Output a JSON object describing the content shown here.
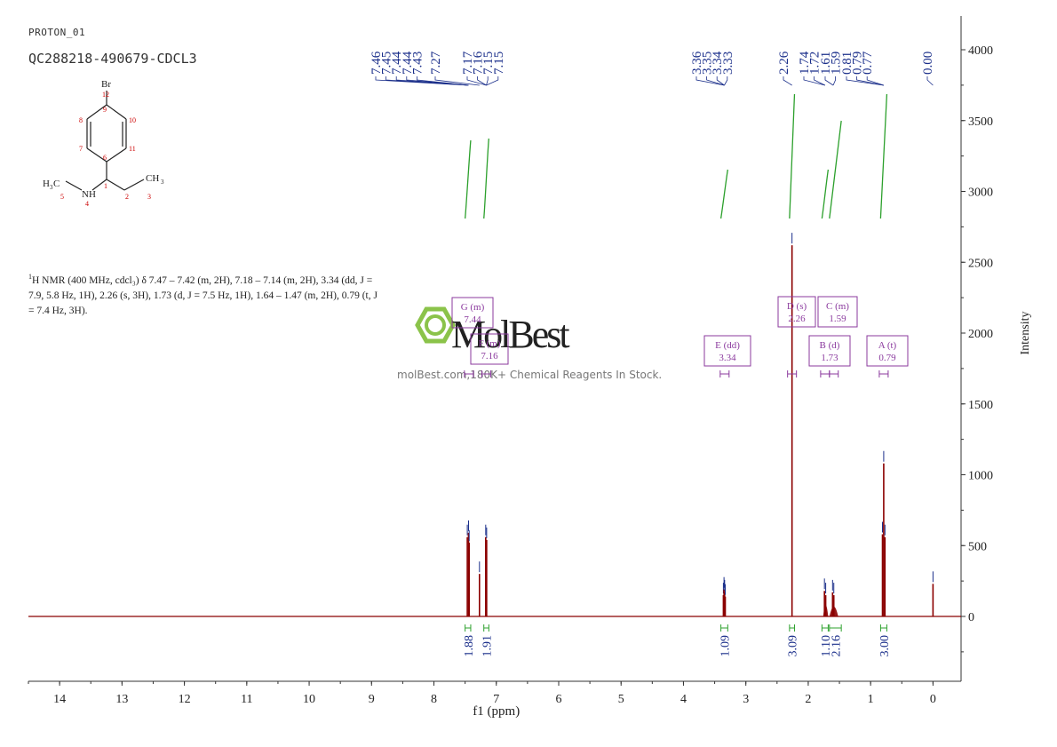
{
  "header": {
    "experiment_id": "PROTON_01",
    "sample_id": "QC288218-490679-CDCL3"
  },
  "molecule": {
    "atoms": {
      "Br": "Br",
      "a12": "12",
      "a9": "9",
      "a8": "8",
      "a10": "10",
      "a7": "7",
      "a11": "11",
      "a6": "6",
      "a1": "1",
      "a2": "2",
      "a3": "3",
      "a5": "5",
      "a4": "4",
      "NH": "NH",
      "H3C_left": "H",
      "H3C_left_sub": "3",
      "H3C_left_C": "C",
      "CH3_right": "CH",
      "CH3_right_sub": "3"
    }
  },
  "nmr_text": {
    "sup": "1",
    "line": "H NMR (400 MHz, cdcl₃) δ 7.47 – 7.42 (m, 2H), 7.18 – 7.14 (m, 2H), 3.34 (dd, J = 7.9, 5.8 Hz, 1H), 2.26 (s, 3H), 1.73 (d, J = 7.5 Hz, 1H), 1.64 – 1.47 (m, 2H), 0.79 (t, J = 7.4 Hz, 3H)."
  },
  "watermark": {
    "logo": "MolBest",
    "caption": "molBest.com,180K+ Chemical Reagents In Stock."
  },
  "colors": {
    "spectrum": "#8b0000",
    "integral": "#2ca02c",
    "peak_label": "#1a2e8a",
    "multiplet_box": "#8b3a9e",
    "axis": "#333333",
    "logo": "#8bc34a"
  },
  "chart_data": {
    "type": "line",
    "xlabel": "f1 (ppm)",
    "ylabel": "Intensity",
    "xlim": [
      14.5,
      -0.45
    ],
    "x_reversed": true,
    "ylim": [
      -420,
      4150
    ],
    "x_ticks": [
      14,
      13,
      12,
      11,
      10,
      9,
      8,
      7,
      6,
      5,
      4,
      3,
      2,
      1,
      0
    ],
    "y_ticks": [
      0,
      500,
      1000,
      1500,
      2000,
      2500,
      3000,
      3500,
      4000
    ],
    "peaks": [
      {
        "ppm": 7.465,
        "height": 560
      },
      {
        "ppm": 7.445,
        "height": 590
      },
      {
        "ppm": 7.435,
        "height": 520
      },
      {
        "ppm": 7.27,
        "height": 300
      },
      {
        "ppm": 7.17,
        "height": 560
      },
      {
        "ppm": 7.155,
        "height": 540
      },
      {
        "ppm": 3.36,
        "height": 150
      },
      {
        "ppm": 3.35,
        "height": 190
      },
      {
        "ppm": 3.34,
        "height": 170
      },
      {
        "ppm": 3.33,
        "height": 140
      },
      {
        "ppm": 2.26,
        "height": 2620
      },
      {
        "ppm": 1.74,
        "height": 180
      },
      {
        "ppm": 1.72,
        "height": 150
      },
      {
        "ppm": 1.61,
        "height": 170
      },
      {
        "ppm": 1.59,
        "height": 150
      },
      {
        "ppm": 0.81,
        "height": 580
      },
      {
        "ppm": 0.79,
        "height": 1080
      },
      {
        "ppm": 0.77,
        "height": 560
      },
      {
        "ppm": 0.0,
        "height": 230
      }
    ],
    "peak_label_groups": [
      {
        "labels": [
          "7.46",
          "7.45",
          "7.44",
          "7.44",
          "7.43"
        ],
        "target_ppm": 7.445
      },
      {
        "labels": [
          "7.27"
        ],
        "target_ppm": 7.27
      },
      {
        "labels": [
          "7.17",
          "7.16",
          "7.15",
          "7.15"
        ],
        "target_ppm": 7.16
      },
      {
        "labels": [
          "3.36",
          "3.35",
          "3.34",
          "3.33"
        ],
        "target_ppm": 3.345
      },
      {
        "labels": [
          "2.26"
        ],
        "target_ppm": 2.26
      },
      {
        "labels": [
          "1.74",
          "1.72"
        ],
        "target_ppm": 1.73
      },
      {
        "labels": [
          "1.61",
          "1.59"
        ],
        "target_ppm": 1.6
      },
      {
        "labels": [
          "0.81",
          "0.79",
          "0.77"
        ],
        "target_ppm": 0.79
      },
      {
        "labels": [
          "0.00"
        ],
        "target_ppm": 0.0
      }
    ],
    "integrals": [
      {
        "from": 7.5,
        "to": 7.41,
        "value": "1.88"
      },
      {
        "from": 7.2,
        "to": 7.12,
        "value": "1.91"
      },
      {
        "from": 3.4,
        "to": 3.29,
        "value": "1.09"
      },
      {
        "from": 2.3,
        "to": 2.22,
        "value": "3.09"
      },
      {
        "from": 1.78,
        "to": 1.68,
        "value": "1.10"
      },
      {
        "from": 1.66,
        "to": 1.47,
        "value": "2.16"
      },
      {
        "from": 0.84,
        "to": 0.74,
        "value": "3.00"
      }
    ],
    "multiplets": [
      {
        "label": "G (m)",
        "shift": "7.44",
        "ppm": 7.44
      },
      {
        "label": "F (m)",
        "shift": "7.16",
        "ppm": 7.16
      },
      {
        "label": "E (dd)",
        "shift": "3.34",
        "ppm": 3.34
      },
      {
        "label": "D (s)",
        "shift": "2.26",
        "ppm": 2.26
      },
      {
        "label": "C (m)",
        "shift": "1.59",
        "ppm": 1.59
      },
      {
        "label": "B (d)",
        "shift": "1.73",
        "ppm": 1.73
      },
      {
        "label": "A (t)",
        "shift": "0.79",
        "ppm": 0.79
      }
    ]
  }
}
